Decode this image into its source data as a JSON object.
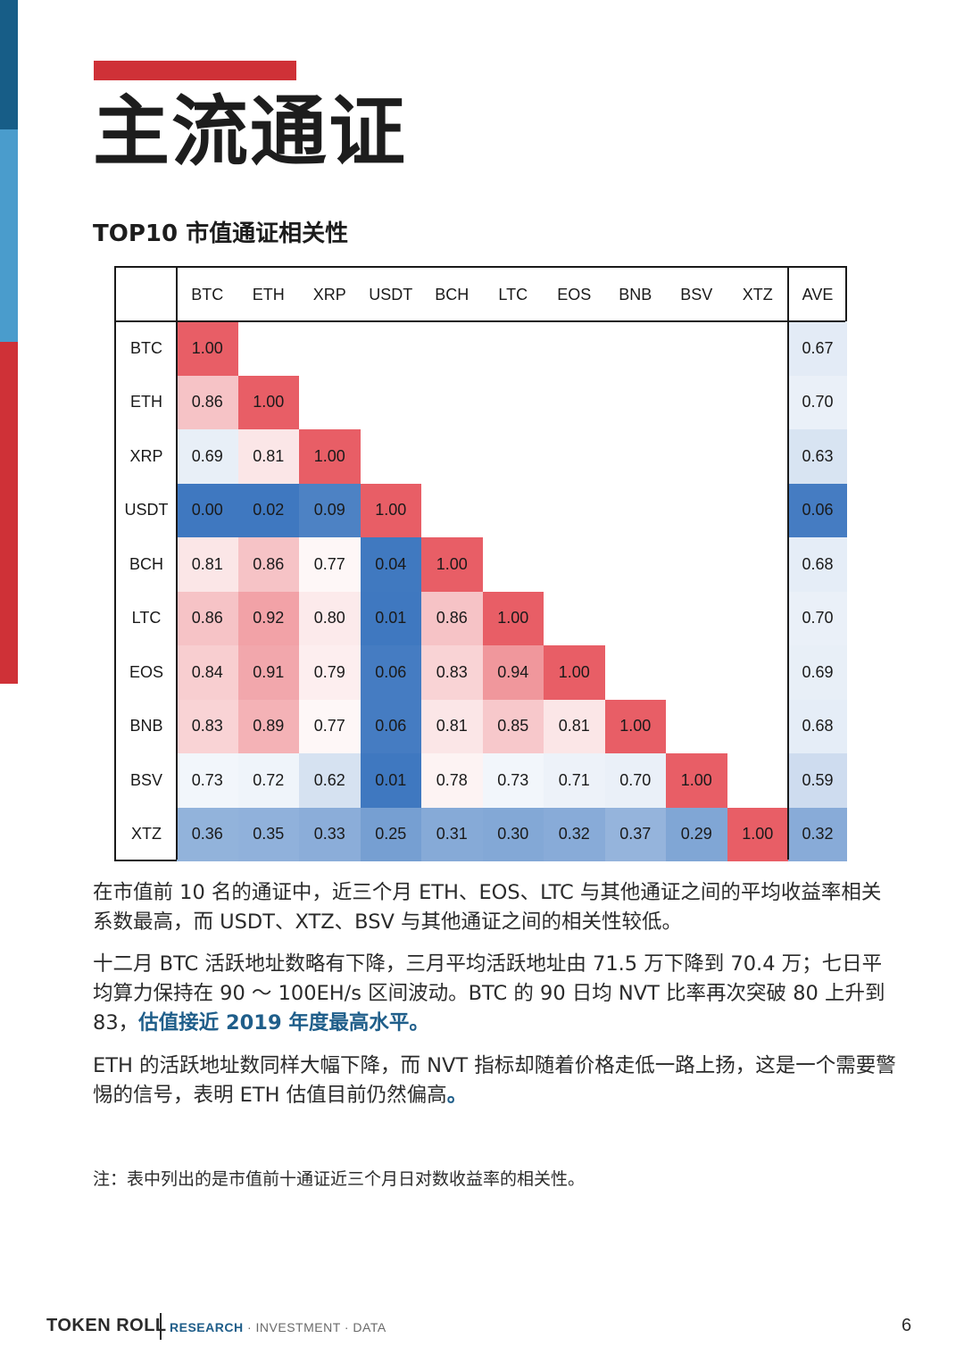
{
  "page": {
    "title": "主流通证",
    "section_heading": "TOP10 市值通证相关性",
    "note": "注：表中列出的是市值前十通证近三个月日对数收益率的相关性。",
    "page_number": "6"
  },
  "paragraphs": {
    "p1": "在市值前 10 名的通证中，近三个月 ETH、EOS、LTC 与其他通证之间的平均收益率相关系数最高，而 USDT、XTZ、BSV 与其他通证之间的相关性较低。",
    "p2_main": "十二月 BTC 活跃地址数略有下降，三月平均活跃地址由 71.5 万下降到 70.4 万；七日平均算力保持在 90 ～ 100EH/s 区间波动。BTC 的 90 日均 NVT 比率再次突破 80 上升到 83，",
    "p2_highlight": "估值接近 2019 年度最高水平。",
    "p3_main": "ETH 的活跃地址数同样大幅下降，而 NVT 指标却随着价格走低一路上扬，这是一个需要警惕的信号，表明 ETH 估值目前仍然偏高",
    "p3_end": "。"
  },
  "footer": {
    "brand": "TOKEN ROLL",
    "research": "RESEARCH",
    "rest": "· INVESTMENT · DATA"
  },
  "colors": {
    "accent_red": "#cf3137",
    "accent_blue": "#175d87",
    "accent_light_blue": "#4a9ccc",
    "highlight_text": "#1f5e8a"
  },
  "chart_data": {
    "type": "heatmap",
    "columns": [
      "BTC",
      "ETH",
      "XRP",
      "USDT",
      "BCH",
      "LTC",
      "EOS",
      "BNB",
      "BSV",
      "XTZ"
    ],
    "rows": [
      "BTC",
      "ETH",
      "XRP",
      "USDT",
      "BCH",
      "LTC",
      "EOS",
      "BNB",
      "BSV",
      "XTZ"
    ],
    "ave_label": "AVE",
    "values": [
      [
        "1.00"
      ],
      [
        "0.86",
        "1.00"
      ],
      [
        "0.69",
        "0.81",
        "1.00"
      ],
      [
        "0.00",
        "0.02",
        "0.09",
        "1.00"
      ],
      [
        "0.81",
        "0.86",
        "0.77",
        "0.04",
        "1.00"
      ],
      [
        "0.86",
        "0.92",
        "0.80",
        "0.01",
        "0.86",
        "1.00"
      ],
      [
        "0.84",
        "0.91",
        "0.79",
        "0.06",
        "0.83",
        "0.94",
        "1.00"
      ],
      [
        "0.83",
        "0.89",
        "0.77",
        "0.06",
        "0.81",
        "0.85",
        "0.81",
        "1.00"
      ],
      [
        "0.73",
        "0.72",
        "0.62",
        "0.01",
        "0.78",
        "0.73",
        "0.71",
        "0.70",
        "1.00"
      ],
      [
        "0.36",
        "0.35",
        "0.33",
        "0.25",
        "0.31",
        "0.30",
        "0.32",
        "0.37",
        "0.29",
        "1.00"
      ]
    ],
    "ave": [
      "0.67",
      "0.70",
      "0.63",
      "0.06",
      "0.68",
      "0.70",
      "0.69",
      "0.68",
      "0.59",
      "0.32"
    ],
    "color_scale": {
      "low": "#3f78c0",
      "mid": "#ffffff",
      "high": "#e85e66"
    }
  }
}
